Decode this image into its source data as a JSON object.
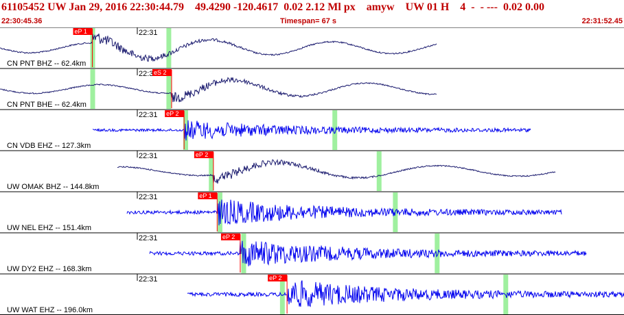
{
  "header": {
    "title": "61105452 UW Jan 29, 2016 22:30:44.79    49.4290 -120.4617  0.02 2.12 Ml px    amyw    UW 01 H    4  -  - ---  0.02 0.00",
    "start_time": "22:30:45.36",
    "timespan": "Timespan=  67 s",
    "end_time": "22:31:52.45"
  },
  "minute_label": "22:31",
  "colors": {
    "highlight": "#9ff09f",
    "pick": "#ff0000",
    "trace_dark": "#1a1a6e",
    "trace_blue": "#0000ee",
    "header_text": "#c00000"
  },
  "traces": [
    {
      "label": "CN PNT BHZ -- 62.4km",
      "color": "#1a1a6e",
      "kind": "surface",
      "amp": 0.85,
      "start": 0,
      "end": 0.7,
      "picks": [
        {
          "text": "eP 1",
          "t": 0.148
        }
      ],
      "highlights": [
        0.148,
        0.27
      ]
    },
    {
      "label": "CN PNT BHE -- 62.4km",
      "color": "#1a1a6e",
      "kind": "surface",
      "amp": 0.75,
      "start": 0,
      "end": 0.7,
      "picks": [
        {
          "text": "eS 2",
          "t": 0.275
        }
      ],
      "highlights": [
        0.148,
        0.27
      ]
    },
    {
      "label": "CN VDB EHZ -- 127.3km",
      "color": "#0000ee",
      "kind": "noise",
      "amp": 0.6,
      "start": 0.148,
      "end": 0.85,
      "picks": [
        {
          "text": "eP 2",
          "t": 0.295
        }
      ],
      "highlights": [
        0.297,
        0.536
      ]
    },
    {
      "label": "UW OMAK BHZ -- 144.8km",
      "color": "#1a1a6e",
      "kind": "surface",
      "amp": 0.75,
      "start": 0.188,
      "end": 0.89,
      "picks": [
        {
          "text": "eP 2",
          "t": 0.342
        }
      ],
      "highlights": [
        0.338,
        0.607
      ]
    },
    {
      "label": "UW NEL EHZ -- 151.4km",
      "color": "#0000ee",
      "kind": "noise",
      "amp": 0.8,
      "start": 0.203,
      "end": 0.9,
      "picks": [
        {
          "text": "eP 1",
          "t": 0.348
        }
      ],
      "highlights": [
        0.352,
        0.633
      ]
    },
    {
      "label": "UW DY2 EHZ -- 168.3km",
      "color": "#0000ee",
      "kind": "noise",
      "amp": 0.85,
      "start": 0.24,
      "end": 0.94,
      "picks": [
        {
          "text": "eP 2",
          "t": 0.385
        }
      ],
      "highlights": [
        0.39,
        0.7
      ]
    },
    {
      "label": "UW WAT EHZ -- 196.0km",
      "color": "#0000ee",
      "kind": "noise",
      "amp": 0.9,
      "start": 0.3,
      "end": 1.0,
      "picks": [
        {
          "text": "eP 2",
          "t": 0.46
        }
      ],
      "highlights": [
        0.452,
        0.81
      ]
    }
  ]
}
